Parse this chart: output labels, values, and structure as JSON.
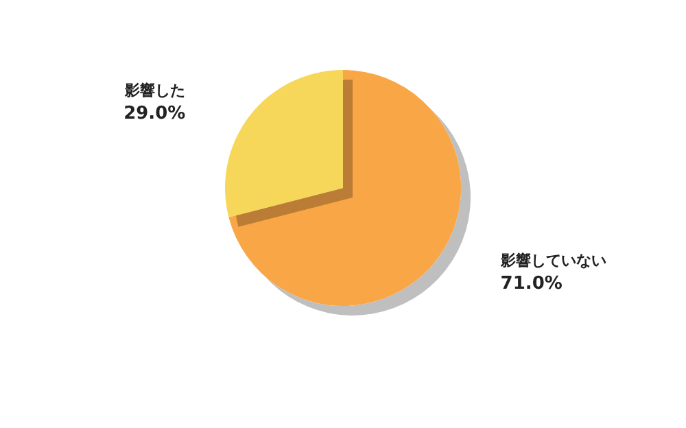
{
  "chart_data": {
    "type": "pie",
    "categories": [
      "影響していない",
      "影響した"
    ],
    "values": [
      71.0,
      29.0
    ],
    "colors": [
      "#f9a646",
      "#f7d75a"
    ],
    "value_labels": [
      "71.0%",
      "29.0%"
    ],
    "legend": false
  }
}
